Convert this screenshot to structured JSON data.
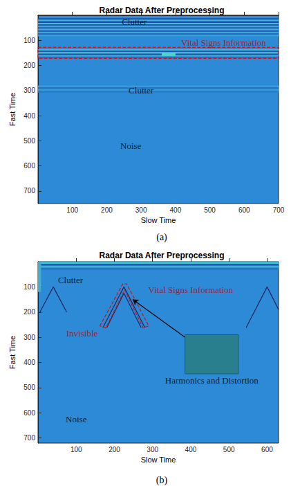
{
  "chart_data": [
    {
      "type": "heatmap",
      "title": "Radar Data After Preprocessing",
      "panel_label": "(a)",
      "x_label": "Slow Time",
      "y_label": "Fast Time",
      "xlim": [
        0,
        700
      ],
      "ylim": [
        0,
        750
      ],
      "xticks": [
        100,
        200,
        300,
        400,
        500,
        600,
        700
      ],
      "yticks": [
        100,
        200,
        300,
        400,
        500,
        600,
        700
      ],
      "grid": false,
      "clim": [
        -1,
        1
      ],
      "cells": [
        [
          0,
          700,
          12,
          18,
          -0.7
        ],
        [
          0,
          700,
          18,
          24,
          0.6
        ],
        [
          0,
          700,
          24,
          30,
          -0.8
        ],
        [
          0,
          700,
          30,
          36,
          0.7
        ],
        [
          0,
          700,
          36,
          42,
          -0.6
        ],
        [
          0,
          700,
          42,
          48,
          0.5
        ],
        [
          0,
          700,
          48,
          54,
          -0.7
        ],
        [
          0,
          700,
          54,
          60,
          0.6
        ],
        [
          0,
          700,
          60,
          66,
          -0.5
        ],
        [
          0,
          700,
          66,
          72,
          0.4
        ],
        [
          0,
          700,
          72,
          78,
          -0.4
        ],
        [
          0,
          700,
          78,
          84,
          0.3
        ],
        [
          0,
          700,
          135,
          141,
          0.6
        ],
        [
          0,
          700,
          141,
          147,
          -0.7
        ],
        [
          0,
          700,
          147,
          153,
          0.8
        ],
        [
          0,
          700,
          153,
          159,
          -0.7
        ],
        [
          0,
          700,
          159,
          165,
          0.6
        ],
        [
          0,
          700,
          165,
          170,
          -0.4
        ],
        [
          360,
          400,
          150,
          162,
          1
        ],
        [
          0,
          700,
          280,
          287,
          0.25
        ],
        [
          0,
          700,
          287,
          294,
          -0.3
        ],
        [
          0,
          700,
          294,
          301,
          0.25
        ],
        [
          0,
          700,
          301,
          308,
          -0.2
        ]
      ],
      "annotations": [
        {
          "text": "Clutter",
          "x": 280,
          "y": 25,
          "color": "#000000"
        },
        {
          "text": "Vital Signs Information",
          "x": 540,
          "y": 108,
          "color": "#c00000"
        },
        {
          "text": "Clutter",
          "x": 300,
          "y": 300,
          "color": "#000000"
        },
        {
          "text": "Noise",
          "x": 270,
          "y": 520,
          "color": "#000000"
        }
      ]
    },
    {
      "type": "heatmap",
      "title": "Radar Data After Preprocessing",
      "panel_label": "(b)",
      "x_label": "Slow Time",
      "y_label": "Fast Time",
      "xlim": [
        0,
        630
      ],
      "ylim": [
        0,
        720
      ],
      "xticks": [
        100,
        200,
        300,
        400,
        500,
        600
      ],
      "yticks": [
        100,
        200,
        300,
        400,
        500,
        600,
        700
      ],
      "grid": false,
      "clim": [
        -1,
        1
      ],
      "cells": [
        [
          0,
          630,
          0,
          8,
          0.7
        ],
        [
          0,
          630,
          8,
          16,
          -0.6
        ],
        [
          0,
          630,
          16,
          24,
          0.5
        ],
        [
          0,
          630,
          24,
          32,
          -0.3
        ],
        [
          0,
          8,
          0,
          120,
          0.5
        ]
      ],
      "traces": [
        [
          [
            170,
            262
          ],
          [
            225,
            100
          ],
          [
            280,
            262
          ]
        ],
        [
          [
            180,
            262
          ],
          [
            225,
            125
          ],
          [
            270,
            262
          ]
        ],
        [
          [
            5,
            200
          ],
          [
            40,
            100
          ],
          [
            75,
            200
          ]
        ],
        [
          [
            545,
            262
          ],
          [
            600,
            100
          ],
          [
            630,
            190
          ]
        ]
      ],
      "annotations": [
        {
          "text": "Clutter",
          "x": 85,
          "y": 72,
          "color": "#000000"
        },
        {
          "text": "Vital Signs Information",
          "x": 400,
          "y": 110,
          "color": "#c00000"
        },
        {
          "text": "Invisible",
          "x": 115,
          "y": 285,
          "color": "#c00000"
        },
        {
          "text": "Harmonics and Distortion",
          "x": 455,
          "y": 470,
          "color": "#000000"
        },
        {
          "text": "Noise",
          "x": 100,
          "y": 625,
          "color": "#000000"
        }
      ]
    }
  ]
}
